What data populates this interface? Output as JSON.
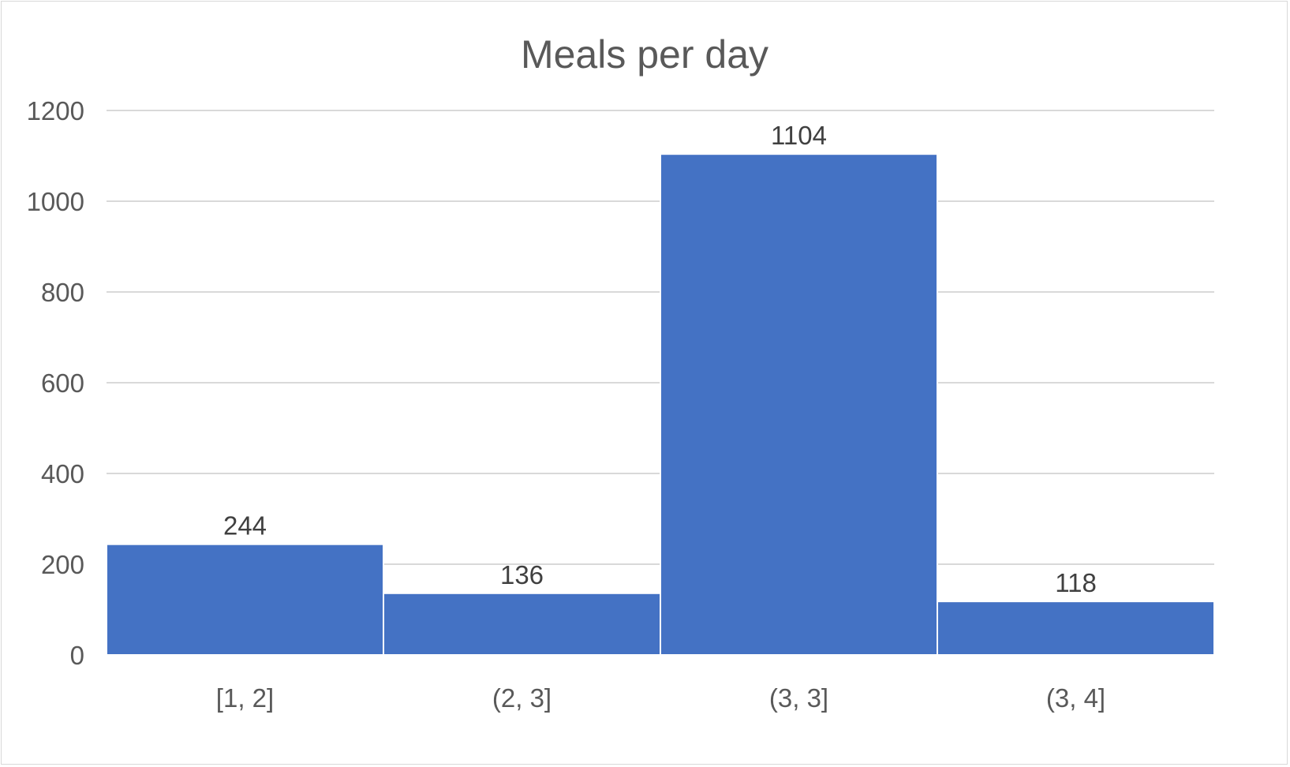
{
  "chart_data": {
    "type": "bar",
    "title": "Meals per day",
    "xlabel": "",
    "ylabel": "",
    "categories": [
      "[1, 2]",
      "(2, 3]",
      "(3, 3]",
      "(3, 4]"
    ],
    "values": [
      244,
      136,
      1104,
      118
    ],
    "data_labels": [
      "244",
      "136",
      "1104",
      "118"
    ],
    "ylim": [
      0,
      1200
    ],
    "y_ticks": [
      0,
      200,
      400,
      600,
      800,
      1000,
      1200
    ],
    "y_tick_labels": [
      "0",
      "200",
      "400",
      "600",
      "800",
      "1000",
      "1200"
    ],
    "grid": true,
    "legend": "none",
    "bar_color": "#4472C4"
  }
}
